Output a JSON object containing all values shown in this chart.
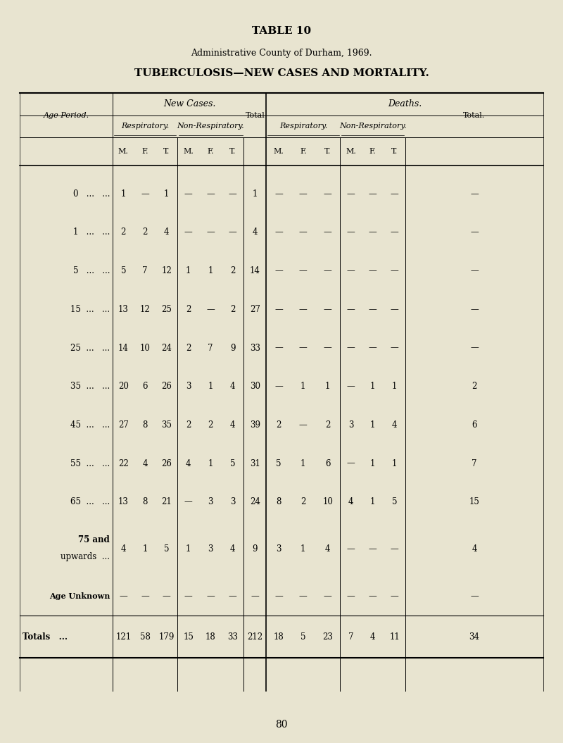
{
  "title1": "TABLE 10",
  "title2": "Administrative County of Durham, 1969.",
  "title3": "TUBERCULOSIS—NEW CASES AND MORTALITY.",
  "bg_color": "#e8e4d0",
  "page_number": "80",
  "col_header_row1_left": "New Cases.",
  "col_header_row1_right": "Deaths.",
  "col_header_resp": "Respiratory.",
  "col_header_nonresp": "Non-Respiratory.",
  "col_header_total": "Total",
  "col_header_total_d": "Total.",
  "col_header_mft": [
    "M.",
    "F.",
    "T."
  ],
  "age_period_label": "Age Period.",
  "rows": [
    {
      "age": "0   ...   ...",
      "nc_resp_m": "1",
      "nc_resp_f": "—",
      "nc_resp_t": "1",
      "nc_nresp_m": "—",
      "nc_nresp_f": "—",
      "nc_nresp_t": "—",
      "nc_total": "1",
      "d_resp_m": "—",
      "d_resp_f": "—",
      "d_resp_t": "—",
      "d_nresp_m": "—",
      "d_nresp_f": "—",
      "d_nresp_t": "—",
      "d_total": "—"
    },
    {
      "age": "1   ...   ...",
      "nc_resp_m": "2",
      "nc_resp_f": "2",
      "nc_resp_t": "4",
      "nc_nresp_m": "—",
      "nc_nresp_f": "—",
      "nc_nresp_t": "—",
      "nc_total": "4",
      "d_resp_m": "—",
      "d_resp_f": "—",
      "d_resp_t": "—",
      "d_nresp_m": "—",
      "d_nresp_f": "—",
      "d_nresp_t": "—",
      "d_total": "—"
    },
    {
      "age": "5   ...   ...",
      "nc_resp_m": "5",
      "nc_resp_f": "7",
      "nc_resp_t": "12",
      "nc_nresp_m": "1",
      "nc_nresp_f": "1",
      "nc_nresp_t": "2",
      "nc_total": "14",
      "d_resp_m": "—",
      "d_resp_f": "—",
      "d_resp_t": "—",
      "d_nresp_m": "—",
      "d_nresp_f": "—",
      "d_nresp_t": "—",
      "d_total": "—"
    },
    {
      "age": "15  ...   ...",
      "nc_resp_m": "13",
      "nc_resp_f": "12",
      "nc_resp_t": "25",
      "nc_nresp_m": "2",
      "nc_nresp_f": "—",
      "nc_nresp_t": "2",
      "nc_total": "27",
      "d_resp_m": "—",
      "d_resp_f": "—",
      "d_resp_t": "—",
      "d_nresp_m": "—",
      "d_nresp_f": "—",
      "d_nresp_t": "—",
      "d_total": "—"
    },
    {
      "age": "25  ...   ...",
      "nc_resp_m": "14",
      "nc_resp_f": "10",
      "nc_resp_t": "24",
      "nc_nresp_m": "2",
      "nc_nresp_f": "7",
      "nc_nresp_t": "9",
      "nc_total": "33",
      "d_resp_m": "—",
      "d_resp_f": "—",
      "d_resp_t": "—",
      "d_nresp_m": "—",
      "d_nresp_f": "—",
      "d_nresp_t": "—",
      "d_total": "—"
    },
    {
      "age": "35  ...   ...",
      "nc_resp_m": "20",
      "nc_resp_f": "6",
      "nc_resp_t": "26",
      "nc_nresp_m": "3",
      "nc_nresp_f": "1",
      "nc_nresp_t": "4",
      "nc_total": "30",
      "d_resp_m": "—",
      "d_resp_f": "1",
      "d_resp_t": "1",
      "d_nresp_m": "—",
      "d_nresp_f": "1",
      "d_nresp_t": "1",
      "d_total": "2"
    },
    {
      "age": "45  ...   ...",
      "nc_resp_m": "27",
      "nc_resp_f": "8",
      "nc_resp_t": "35",
      "nc_nresp_m": "2",
      "nc_nresp_f": "2",
      "nc_nresp_t": "4",
      "nc_total": "39",
      "d_resp_m": "2",
      "d_resp_f": "—",
      "d_resp_t": "2",
      "d_nresp_m": "3",
      "d_nresp_f": "1",
      "d_nresp_t": "4",
      "d_total": "6"
    },
    {
      "age": "55  ...   ...",
      "nc_resp_m": "22",
      "nc_resp_f": "4",
      "nc_resp_t": "26",
      "nc_nresp_m": "4",
      "nc_nresp_f": "1",
      "nc_nresp_t": "5",
      "nc_total": "31",
      "d_resp_m": "5",
      "d_resp_f": "1",
      "d_resp_t": "6",
      "d_nresp_m": "—",
      "d_nresp_f": "1",
      "d_nresp_t": "1",
      "d_total": "7"
    },
    {
      "age": "65  ...   ...",
      "nc_resp_m": "13",
      "nc_resp_f": "8",
      "nc_resp_t": "21",
      "nc_nresp_m": "—",
      "nc_nresp_f": "3",
      "nc_nresp_t": "3",
      "nc_total": "24",
      "d_resp_m": "8",
      "d_resp_f": "2",
      "d_resp_t": "10",
      "d_nresp_m": "4",
      "d_nresp_f": "1",
      "d_nresp_t": "5",
      "d_total": "15"
    },
    {
      "age": "75 and\nupwards  ...",
      "nc_resp_m": "4",
      "nc_resp_f": "1",
      "nc_resp_t": "5",
      "nc_nresp_m": "1",
      "nc_nresp_f": "3",
      "nc_nresp_t": "4",
      "nc_total": "9",
      "d_resp_m": "3",
      "d_resp_f": "1",
      "d_resp_t": "4",
      "d_nresp_m": "—",
      "d_nresp_f": "—",
      "d_nresp_t": "—",
      "d_total": "4"
    },
    {
      "age": "Age Unknown",
      "nc_resp_m": "—",
      "nc_resp_f": "—",
      "nc_resp_t": "—",
      "nc_nresp_m": "—",
      "nc_nresp_f": "—",
      "nc_nresp_t": "—",
      "nc_total": "—",
      "d_resp_m": "—",
      "d_resp_f": "—",
      "d_resp_t": "—",
      "d_nresp_m": "—",
      "d_nresp_f": "—",
      "d_nresp_t": "—",
      "d_total": "—"
    }
  ],
  "totals": {
    "age": "Totals   ...",
    "nc_resp_m": "121",
    "nc_resp_f": "58",
    "nc_resp_t": "179",
    "nc_nresp_m": "15",
    "nc_nresp_f": "18",
    "nc_nresp_t": "33",
    "nc_total": "212",
    "d_resp_m": "18",
    "d_resp_f": "5",
    "d_resp_t": "23",
    "d_nresp_m": "7",
    "d_nresp_f": "4",
    "d_nresp_t": "11",
    "d_total": "34"
  }
}
